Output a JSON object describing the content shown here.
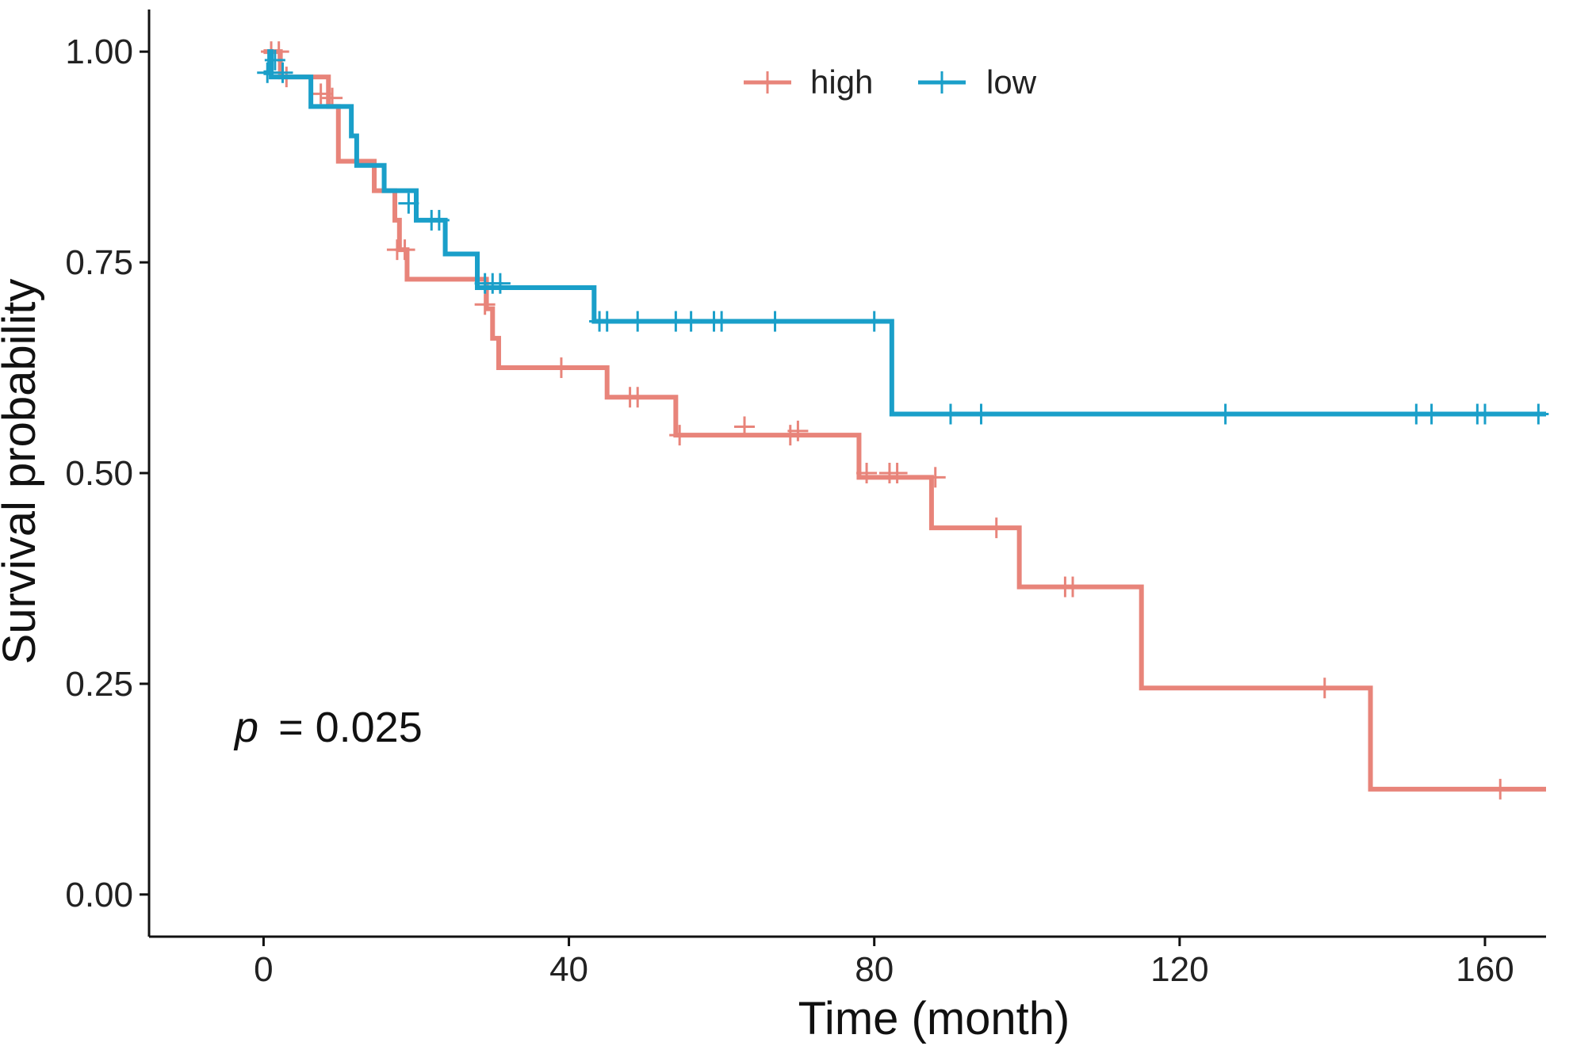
{
  "chart_data": {
    "type": "line",
    "subtype": "kaplan-meier survival curve",
    "xlabel": "Time (month)",
    "ylabel": "Survival probability",
    "xlim": [
      -15,
      168
    ],
    "ylim": [
      -0.05,
      1.05
    ],
    "xticks": [
      0,
      40,
      80,
      120,
      160
    ],
    "xtick_labels": [
      "0",
      "40",
      "80",
      "120",
      "160"
    ],
    "yticks": [
      0,
      0.25,
      0.5,
      0.75,
      1
    ],
    "ytick_labels": [
      "0.00",
      "0.25",
      "0.50",
      "0.75",
      "1.00"
    ],
    "legend_position": "top",
    "grid": false,
    "annotation": {
      "p_label": "p",
      "p_value": "= 0.025"
    },
    "series": [
      {
        "name": "high",
        "color": "#E8847A",
        "steps": [
          [
            0,
            1.0
          ],
          [
            1.5,
            1.0
          ],
          [
            2.2,
            0.97
          ],
          [
            7.5,
            0.97
          ],
          [
            8.5,
            0.935
          ],
          [
            9.5,
            0.935
          ],
          [
            9.8,
            0.87
          ],
          [
            13.5,
            0.87
          ],
          [
            14.5,
            0.835
          ],
          [
            16.5,
            0.835
          ],
          [
            17.2,
            0.8
          ],
          [
            17.8,
            0.765
          ],
          [
            18.8,
            0.73
          ],
          [
            28.5,
            0.73
          ],
          [
            29.2,
            0.695
          ],
          [
            30.0,
            0.66
          ],
          [
            30.8,
            0.625
          ],
          [
            44.5,
            0.625
          ],
          [
            45.0,
            0.59
          ],
          [
            53.5,
            0.59
          ],
          [
            54.0,
            0.545
          ],
          [
            77.5,
            0.545
          ],
          [
            78.0,
            0.495
          ],
          [
            87.0,
            0.495
          ],
          [
            87.5,
            0.435
          ],
          [
            98.5,
            0.435
          ],
          [
            99.0,
            0.365
          ],
          [
            114.5,
            0.365
          ],
          [
            115.0,
            0.245
          ],
          [
            144.5,
            0.245
          ],
          [
            145.0,
            0.125
          ],
          [
            168,
            0.125
          ]
        ],
        "censor": [
          [
            1.0,
            1.0
          ],
          [
            2.0,
            1.0
          ],
          [
            3.0,
            0.97
          ],
          [
            7.5,
            0.95
          ],
          [
            9.0,
            0.945
          ],
          [
            17.5,
            0.765
          ],
          [
            18.5,
            0.765
          ],
          [
            28.0,
            0.73
          ],
          [
            29.0,
            0.7
          ],
          [
            39.0,
            0.625
          ],
          [
            48.0,
            0.59
          ],
          [
            49.0,
            0.59
          ],
          [
            54.5,
            0.545
          ],
          [
            63.0,
            0.555
          ],
          [
            69.0,
            0.545
          ],
          [
            70.0,
            0.55
          ],
          [
            79.0,
            0.5
          ],
          [
            82.0,
            0.5
          ],
          [
            83.0,
            0.5
          ],
          [
            88.0,
            0.495
          ],
          [
            96.0,
            0.435
          ],
          [
            105.0,
            0.365
          ],
          [
            106.0,
            0.365
          ],
          [
            139.0,
            0.245
          ],
          [
            162.0,
            0.125
          ]
        ]
      },
      {
        "name": "low",
        "color": "#1A9FC9",
        "steps": [
          [
            0,
            0.975
          ],
          [
            0.5,
            0.975
          ],
          [
            0.8,
            1.0
          ],
          [
            1.0,
            0.97
          ],
          [
            6.0,
            0.97
          ],
          [
            6.2,
            0.935
          ],
          [
            11.0,
            0.935
          ],
          [
            11.5,
            0.9
          ],
          [
            12.2,
            0.865
          ],
          [
            15.5,
            0.865
          ],
          [
            15.8,
            0.835
          ],
          [
            19.5,
            0.835
          ],
          [
            20.0,
            0.8
          ],
          [
            23.5,
            0.8
          ],
          [
            23.8,
            0.76
          ],
          [
            27.5,
            0.76
          ],
          [
            28.0,
            0.72
          ],
          [
            43.0,
            0.72
          ],
          [
            43.3,
            0.68
          ],
          [
            82.0,
            0.68
          ],
          [
            82.3,
            0.57
          ],
          [
            168,
            0.57
          ]
        ],
        "censor": [
          [
            0.5,
            0.975
          ],
          [
            1.5,
            0.99
          ],
          [
            2.5,
            0.975
          ],
          [
            19.0,
            0.82
          ],
          [
            22.0,
            0.8
          ],
          [
            23.0,
            0.8
          ],
          [
            29.0,
            0.725
          ],
          [
            30.0,
            0.725
          ],
          [
            31.0,
            0.725
          ],
          [
            44.0,
            0.68
          ],
          [
            45.0,
            0.68
          ],
          [
            49.0,
            0.68
          ],
          [
            54.0,
            0.68
          ],
          [
            56.0,
            0.68
          ],
          [
            59.0,
            0.68
          ],
          [
            60.0,
            0.68
          ],
          [
            67.0,
            0.68
          ],
          [
            80.0,
            0.68
          ],
          [
            90.0,
            0.57
          ],
          [
            94.0,
            0.57
          ],
          [
            126.0,
            0.57
          ],
          [
            151.0,
            0.57
          ],
          [
            153.0,
            0.57
          ],
          [
            159.0,
            0.57
          ],
          [
            160.0,
            0.57
          ],
          [
            167.0,
            0.57
          ]
        ]
      }
    ]
  }
}
